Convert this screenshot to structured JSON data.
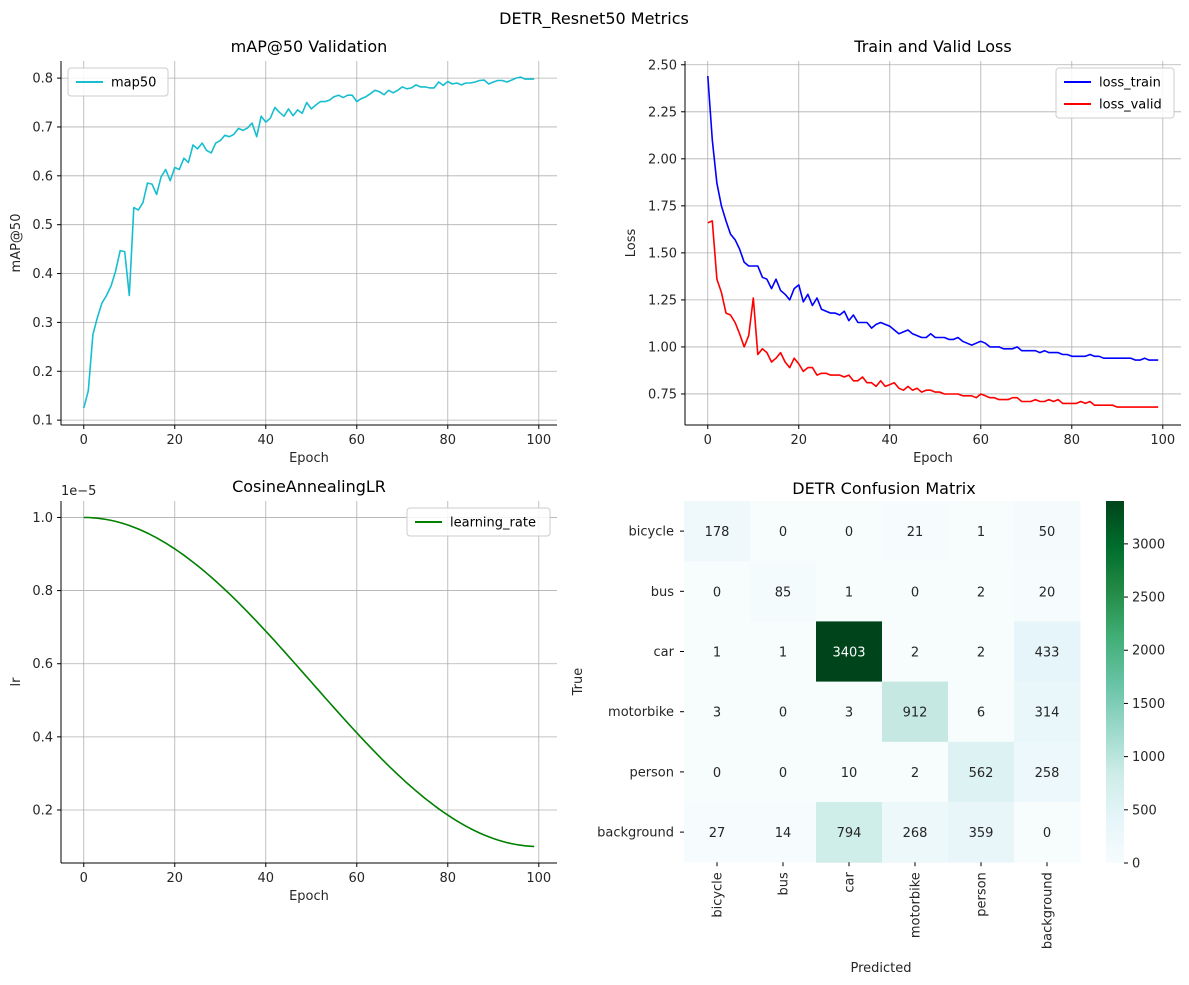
{
  "figure": {
    "title": "DETR_Resnet50 Metrics"
  },
  "chart_data": [
    {
      "id": "map",
      "type": "line",
      "title": "mAP@50 Validation",
      "xlabel": "Epoch",
      "ylabel": "mAP@50",
      "xlim": [
        -5,
        104
      ],
      "ylim": [
        0.09,
        0.835
      ],
      "xticks": [
        0,
        20,
        40,
        60,
        80,
        100
      ],
      "yticks": [
        0.1,
        0.2,
        0.3,
        0.4,
        0.5,
        0.6,
        0.7,
        0.8
      ],
      "ytick_labels": [
        "0.1",
        "0.2",
        "0.3",
        "0.4",
        "0.5",
        "0.6",
        "0.7",
        "0.8"
      ],
      "grid": true,
      "legend": "upper left",
      "series": [
        {
          "name": "map50",
          "color": "#17becf",
          "y": [
            0.125,
            0.16,
            0.275,
            0.31,
            0.34,
            0.355,
            0.375,
            0.405,
            0.447,
            0.445,
            0.355,
            0.535,
            0.53,
            0.545,
            0.585,
            0.583,
            0.562,
            0.598,
            0.613,
            0.59,
            0.617,
            0.613,
            0.636,
            0.627,
            0.663,
            0.655,
            0.667,
            0.652,
            0.647,
            0.667,
            0.672,
            0.683,
            0.68,
            0.685,
            0.697,
            0.693,
            0.698,
            0.708,
            0.68,
            0.722,
            0.71,
            0.718,
            0.74,
            0.73,
            0.722,
            0.737,
            0.723,
            0.735,
            0.728,
            0.75,
            0.737,
            0.745,
            0.752,
            0.752,
            0.755,
            0.762,
            0.765,
            0.76,
            0.765,
            0.765,
            0.752,
            0.758,
            0.762,
            0.768,
            0.775,
            0.772,
            0.766,
            0.775,
            0.77,
            0.775,
            0.782,
            0.778,
            0.78,
            0.786,
            0.782,
            0.782,
            0.78,
            0.78,
            0.792,
            0.785,
            0.793,
            0.788,
            0.79,
            0.786,
            0.79,
            0.79,
            0.792,
            0.795,
            0.796,
            0.788,
            0.792,
            0.795,
            0.795,
            0.792,
            0.796,
            0.8,
            0.802,
            0.798,
            0.798,
            0.798
          ]
        }
      ]
    },
    {
      "id": "loss",
      "type": "line",
      "title": "Train and Valid Loss",
      "xlabel": "Epoch",
      "ylabel": "Loss",
      "xlim": [
        -5,
        104
      ],
      "ylim": [
        0.585,
        2.52
      ],
      "xticks": [
        0,
        20,
        40,
        60,
        80,
        100
      ],
      "yticks": [
        0.75,
        1.0,
        1.25,
        1.5,
        1.75,
        2.0,
        2.25,
        2.5
      ],
      "ytick_labels": [
        "0.75",
        "1.00",
        "1.25",
        "1.50",
        "1.75",
        "2.00",
        "2.25",
        "2.50"
      ],
      "grid": true,
      "legend": "upper right",
      "series": [
        {
          "name": "loss_train",
          "color": "#0000ff",
          "y": [
            2.44,
            2.1,
            1.87,
            1.75,
            1.67,
            1.6,
            1.57,
            1.52,
            1.45,
            1.43,
            1.43,
            1.43,
            1.37,
            1.36,
            1.31,
            1.36,
            1.3,
            1.28,
            1.25,
            1.31,
            1.33,
            1.24,
            1.28,
            1.22,
            1.26,
            1.2,
            1.19,
            1.18,
            1.18,
            1.17,
            1.19,
            1.14,
            1.17,
            1.13,
            1.13,
            1.13,
            1.1,
            1.12,
            1.13,
            1.12,
            1.11,
            1.09,
            1.07,
            1.08,
            1.09,
            1.07,
            1.06,
            1.05,
            1.05,
            1.07,
            1.05,
            1.05,
            1.05,
            1.04,
            1.04,
            1.05,
            1.03,
            1.02,
            1.01,
            1.02,
            1.03,
            1.02,
            1.0,
            1.0,
            1.0,
            0.99,
            0.99,
            0.99,
            1.0,
            0.98,
            0.98,
            0.98,
            0.98,
            0.97,
            0.98,
            0.97,
            0.97,
            0.97,
            0.96,
            0.96,
            0.95,
            0.95,
            0.95,
            0.95,
            0.96,
            0.95,
            0.95,
            0.94,
            0.94,
            0.94,
            0.94,
            0.94,
            0.94,
            0.94,
            0.93,
            0.93,
            0.94,
            0.93,
            0.93,
            0.93
          ]
        },
        {
          "name": "loss_valid",
          "color": "#ff0000",
          "y": [
            1.66,
            1.67,
            1.36,
            1.29,
            1.18,
            1.17,
            1.13,
            1.07,
            1.0,
            1.06,
            1.26,
            0.96,
            0.99,
            0.97,
            0.92,
            0.94,
            0.97,
            0.92,
            0.89,
            0.94,
            0.91,
            0.87,
            0.89,
            0.89,
            0.85,
            0.86,
            0.86,
            0.85,
            0.85,
            0.85,
            0.84,
            0.85,
            0.82,
            0.82,
            0.84,
            0.81,
            0.81,
            0.79,
            0.82,
            0.79,
            0.8,
            0.81,
            0.78,
            0.77,
            0.79,
            0.77,
            0.78,
            0.76,
            0.77,
            0.77,
            0.76,
            0.76,
            0.75,
            0.75,
            0.75,
            0.75,
            0.74,
            0.74,
            0.74,
            0.73,
            0.75,
            0.74,
            0.73,
            0.73,
            0.72,
            0.72,
            0.72,
            0.73,
            0.73,
            0.71,
            0.71,
            0.71,
            0.72,
            0.71,
            0.71,
            0.72,
            0.71,
            0.72,
            0.7,
            0.7,
            0.7,
            0.7,
            0.71,
            0.7,
            0.71,
            0.69,
            0.69,
            0.69,
            0.69,
            0.69,
            0.68,
            0.68,
            0.68,
            0.68,
            0.68,
            0.68,
            0.68,
            0.68,
            0.68,
            0.68
          ]
        }
      ]
    },
    {
      "id": "lr",
      "type": "line",
      "title": "CosineAnnealingLR",
      "xlabel": "Epoch",
      "ylabel": "lr",
      "offset_label": "1e−5",
      "xlim": [
        -5,
        104
      ],
      "ylim": [
        0.055,
        1.045
      ],
      "xticks": [
        0,
        20,
        40,
        60,
        80,
        100
      ],
      "yticks": [
        0.2,
        0.4,
        0.6,
        0.8,
        1.0
      ],
      "ytick_labels": [
        "0.2",
        "0.4",
        "0.6",
        "0.8",
        "1.0"
      ],
      "grid": true,
      "legend": "upper right",
      "series": [
        {
          "name": "learning_rate",
          "color": "#008000",
          "curve": "cosine",
          "max": 1.0,
          "min": 0.1,
          "epochs": 100
        }
      ]
    },
    {
      "id": "confusion",
      "type": "heatmap",
      "title": "DETR Confusion Matrix",
      "xlabel": "Predicted",
      "ylabel": "True",
      "row_labels": [
        "bicycle",
        "bus",
        "car",
        "motorbike",
        "person",
        "background"
      ],
      "col_labels": [
        "bicycle",
        "bus",
        "car",
        "motorbike",
        "person",
        "background"
      ],
      "values": [
        [
          178,
          0,
          0,
          21,
          1,
          50
        ],
        [
          0,
          85,
          1,
          0,
          2,
          20
        ],
        [
          1,
          1,
          3403,
          2,
          2,
          433
        ],
        [
          3,
          0,
          3,
          912,
          6,
          314
        ],
        [
          0,
          0,
          10,
          2,
          562,
          258
        ],
        [
          27,
          14,
          794,
          268,
          359,
          0
        ]
      ],
      "colormap": "BuGn",
      "vmin": 0,
      "vmax": 3403,
      "colorbar_ticks": [
        0,
        500,
        1000,
        1500,
        2000,
        2500,
        3000
      ],
      "colorbar_tick_labels": [
        "0",
        "500",
        "1000",
        "1500",
        "2000",
        "2500",
        "3000"
      ]
    }
  ]
}
